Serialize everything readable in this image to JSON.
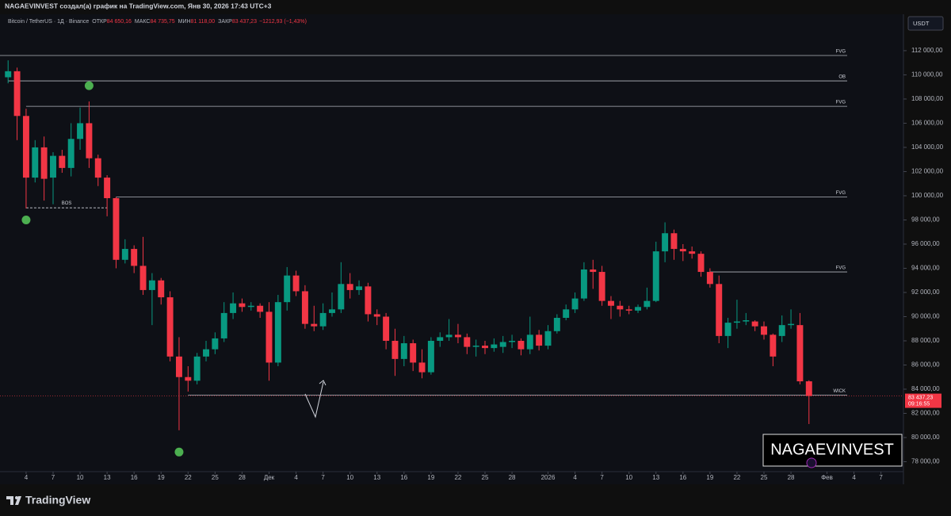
{
  "header": {
    "credit": "NAGAEVINVEST создал(а) график на TradingView.com, Янв 30, 2026 17:43 UTC+3"
  },
  "footer": {
    "brand": "TradingView"
  },
  "watermark": "NAGAEVINVEST",
  "chart_data": {
    "type": "candlestick",
    "title": "Bitcoin / TetherUS · 1Д · Binance",
    "ohlc_legend": [
      {
        "key": "ОТКР",
        "value": "84 650,16"
      },
      {
        "key": "МАКС",
        "value": "84 735,75"
      },
      {
        "key": "МИН",
        "value": "81 118,00"
      },
      {
        "key": "ЗАКР",
        "value": "83 437,23"
      }
    ],
    "change_label": "−1212,93 (−1,43%)",
    "currency": "USDT",
    "last_price_label": "83 437,23",
    "countdown": "09:16:55",
    "up_color": "#089981",
    "down_color": "#f23645",
    "open": [
      109800,
      110300,
      106600,
      101500,
      104000,
      101500,
      103300,
      102300,
      104700,
      106000,
      103100,
      101500,
      99800,
      94700,
      95600,
      94200,
      92200,
      93000,
      91600,
      86700,
      85000,
      84700,
      86700,
      87300,
      88200,
      90300,
      91100,
      90800,
      90900,
      90400,
      86200,
      91200,
      93400,
      92100,
      89400,
      89200,
      90300,
      90600,
      92700,
      92200,
      92500,
      90200,
      90000,
      88000,
      86500,
      87800,
      86200,
      85400,
      88000,
      88300,
      88500,
      88300,
      87500,
      87600,
      87400,
      87500,
      87900,
      88000,
      87300,
      88500,
      87600,
      88800,
      89900,
      90600,
      91500,
      93900,
      93700,
      91300,
      90900,
      90600,
      90500,
      90800,
      91300,
      95400,
      96900,
      95600,
      95400,
      95200,
      93700,
      92700,
      88400,
      89500,
      89600,
      89600,
      89200,
      88500,
      88400,
      89300,
      89300,
      84650.16
    ],
    "high": [
      111200,
      110600,
      107200,
      104600,
      104900,
      103600,
      103800,
      106000,
      107300,
      107800,
      103400,
      101700,
      99900,
      96400,
      95900,
      96600,
      93600,
      93200,
      92100,
      88300,
      85900,
      87000,
      88000,
      88700,
      91200,
      92000,
      91500,
      91200,
      91100,
      91200,
      91800,
      94100,
      93800,
      92600,
      90900,
      91100,
      92000,
      94500,
      93600,
      93000,
      92800,
      90600,
      90300,
      89000,
      88400,
      88100,
      87300,
      88300,
      88700,
      89800,
      89400,
      88600,
      88100,
      88000,
      88200,
      88400,
      88500,
      88200,
      90000,
      88900,
      89300,
      90200,
      91000,
      92000,
      94500,
      94700,
      94200,
      91700,
      91300,
      90900,
      91000,
      92400,
      96200,
      97800,
      97200,
      96000,
      95800,
      95400,
      94000,
      93400,
      89900,
      91400,
      90300,
      89700,
      89600,
      88600,
      90100,
      90600,
      90300,
      84735.75
    ],
    "low": [
      109300,
      104600,
      98950,
      101100,
      99600,
      99300,
      101900,
      101600,
      103800,
      102300,
      100800,
      98300,
      94000,
      94400,
      93600,
      91800,
      89300,
      91000,
      86300,
      80600,
      83800,
      84400,
      86300,
      86900,
      87900,
      89800,
      90400,
      90500,
      89900,
      84700,
      85900,
      90500,
      91700,
      89000,
      88800,
      88900,
      90000,
      90300,
      91500,
      91800,
      89600,
      89300,
      87300,
      85100,
      85900,
      85500,
      84900,
      85200,
      87500,
      88000,
      87800,
      86900,
      86700,
      86900,
      87100,
      87000,
      87400,
      86800,
      86900,
      87200,
      87300,
      88600,
      89700,
      90300,
      91300,
      92300,
      90900,
      89800,
      90000,
      90200,
      90300,
      90600,
      91200,
      94500,
      94700,
      94600,
      94800,
      93300,
      92400,
      87800,
      87400,
      89000,
      89300,
      88800,
      88100,
      85900,
      87900,
      89000,
      84400,
      81118
    ],
    "close": [
      110300,
      106600,
      101500,
      104000,
      101400,
      103300,
      102300,
      104700,
      106000,
      103100,
      101500,
      99800,
      94700,
      95600,
      94200,
      92200,
      93000,
      91600,
      86700,
      85000,
      84700,
      86700,
      87300,
      88200,
      90300,
      91100,
      90800,
      90900,
      90400,
      86200,
      91200,
      93400,
      92100,
      89400,
      89200,
      90300,
      90600,
      92700,
      92200,
      92500,
      90200,
      90000,
      88000,
      86500,
      87800,
      86200,
      85400,
      88000,
      88300,
      88500,
      88300,
      87500,
      87600,
      87400,
      87700,
      87900,
      88000,
      87300,
      88500,
      87600,
      88800,
      89900,
      90600,
      91500,
      93900,
      93700,
      91300,
      90900,
      90600,
      90500,
      90800,
      91300,
      95400,
      96900,
      95600,
      95400,
      95200,
      93700,
      92700,
      88400,
      89500,
      89600,
      89700,
      89200,
      88500,
      86700,
      89300,
      89400,
      84650,
      83437.23
    ],
    "xlim": [
      -0.9,
      99.5
    ],
    "xticks": [
      {
        "value": 2,
        "label": "4"
      },
      {
        "value": 5,
        "label": "7"
      },
      {
        "value": 8,
        "label": "10"
      },
      {
        "value": 11,
        "label": "13"
      },
      {
        "value": 14,
        "label": "16"
      },
      {
        "value": 17,
        "label": "19"
      },
      {
        "value": 20,
        "label": "22"
      },
      {
        "value": 23,
        "label": "25"
      },
      {
        "value": 26,
        "label": "28"
      },
      {
        "value": 29,
        "label": "Дек"
      },
      {
        "value": 32,
        "label": "4"
      },
      {
        "value": 35,
        "label": "7"
      },
      {
        "value": 38,
        "label": "10"
      },
      {
        "value": 41,
        "label": "13"
      },
      {
        "value": 44,
        "label": "16"
      },
      {
        "value": 47,
        "label": "19"
      },
      {
        "value": 50,
        "label": "22"
      },
      {
        "value": 53,
        "label": "25"
      },
      {
        "value": 56,
        "label": "28"
      },
      {
        "value": 60,
        "label": "2026"
      },
      {
        "value": 63,
        "label": "4"
      },
      {
        "value": 66,
        "label": "7"
      },
      {
        "value": 69,
        "label": "10"
      },
      {
        "value": 72,
        "label": "13"
      },
      {
        "value": 75,
        "label": "16"
      },
      {
        "value": 78,
        "label": "19"
      },
      {
        "value": 81,
        "label": "22"
      },
      {
        "value": 84,
        "label": "25"
      },
      {
        "value": 87,
        "label": "28"
      },
      {
        "value": 91,
        "label": "Фев"
      },
      {
        "value": 94,
        "label": "4"
      },
      {
        "value": 97,
        "label": "7"
      }
    ],
    "ylim": [
      77050,
      113700
    ],
    "yticks": [
      {
        "value": 112000,
        "label": "112 000,00"
      },
      {
        "value": 110000,
        "label": "110 000,00"
      },
      {
        "value": 108000,
        "label": "108 000,00"
      },
      {
        "value": 106000,
        "label": "106 000,00"
      },
      {
        "value": 104000,
        "label": "104 000,00"
      },
      {
        "value": 102000,
        "label": "102 000,00"
      },
      {
        "value": 100000,
        "label": "100 000,00"
      },
      {
        "value": 98000,
        "label": "98 000,00"
      },
      {
        "value": 96000,
        "label": "96 000,00"
      },
      {
        "value": 94000,
        "label": "94 000,00"
      },
      {
        "value": 92000,
        "label": "92 000,00"
      },
      {
        "value": 90000,
        "label": "90 000,00"
      },
      {
        "value": 88000,
        "label": "88 000,00"
      },
      {
        "value": 86000,
        "label": "86 000,00"
      },
      {
        "value": 84000,
        "label": "84 000,00"
      },
      {
        "value": 82000,
        "label": "82 000,00"
      },
      {
        "value": 80000,
        "label": "80 000,00"
      },
      {
        "value": 78000,
        "label": "78 000,00"
      }
    ],
    "levels": [
      {
        "label": "FVG",
        "value": 111600,
        "start": -0.9
      },
      {
        "label": "OB",
        "value": 109500,
        "start": 0
      },
      {
        "label": "FVG",
        "value": 107400,
        "start": 2
      },
      {
        "label": "FVG",
        "value": 99900,
        "start": 12
      },
      {
        "label": "FVG",
        "value": 93700,
        "start": 78
      },
      {
        "label": "WICK",
        "value": 83500,
        "start": 20
      }
    ],
    "bos": {
      "label": "BOS",
      "value": 99000,
      "start": 2,
      "end": 11
    },
    "markers": {
      "color": "#4caf50",
      "points": [
        {
          "index": 9,
          "value": 109100
        },
        {
          "index": 2,
          "value": 98000
        },
        {
          "index": 19,
          "value": 78800
        }
      ]
    }
  }
}
